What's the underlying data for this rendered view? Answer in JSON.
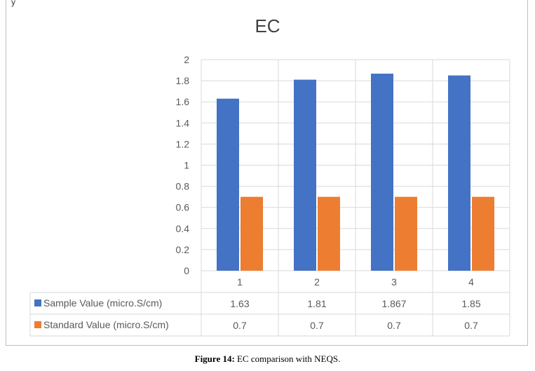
{
  "chart_data": {
    "type": "bar",
    "title": "EC",
    "categories": [
      "1",
      "2",
      "3",
      "4"
    ],
    "series": [
      {
        "name": "Sample Value (micro.S/cm)",
        "values": [
          1.63,
          1.81,
          1.867,
          1.85
        ],
        "labels": [
          "1.63",
          "1.81",
          "1.867",
          "1.85"
        ],
        "color": "#4472C4"
      },
      {
        "name": "Standard Value (micro.S/cm)",
        "values": [
          0.7,
          0.7,
          0.7,
          0.7
        ],
        "labels": [
          "0.7",
          "0.7",
          "0.7",
          "0.7"
        ],
        "color": "#ED7D31"
      }
    ],
    "ylim": [
      0,
      2
    ],
    "yticks": [
      "0",
      "0.2",
      "0.4",
      "0.6",
      "0.8",
      "1",
      "1.2",
      "1.4",
      "1.6",
      "1.8",
      "2"
    ],
    "grid": true,
    "legend": "data table below chart"
  },
  "caption": {
    "label": "Figure 14:",
    "text": " EC comparison with NEQS."
  },
  "corner_text": "y"
}
